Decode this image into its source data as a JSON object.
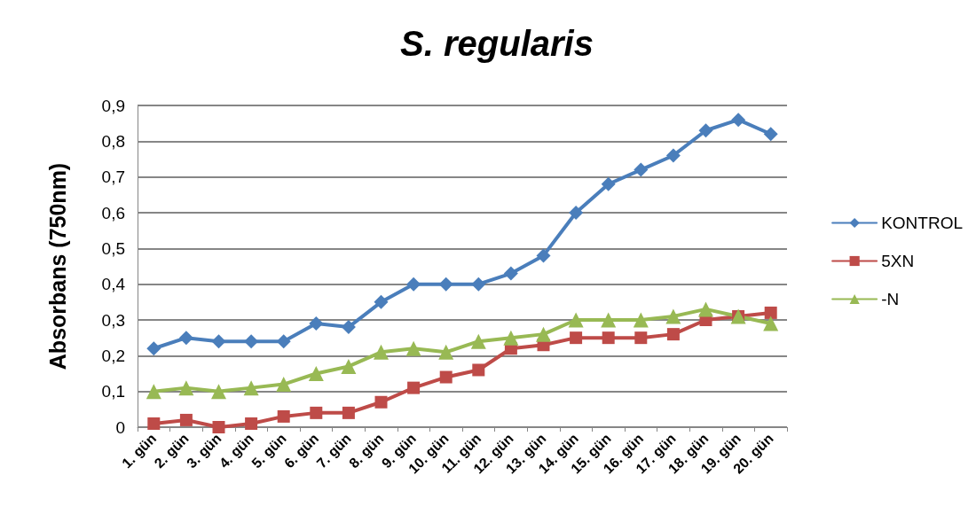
{
  "chart_data": {
    "type": "line",
    "title": "S. regularis",
    "ylabel": "Absorbans (750nm)",
    "categories": [
      "1. gün",
      "2. gün",
      "3. gün",
      "4. gün",
      "5. gün",
      "6. gün",
      "7. gün",
      "8. gün",
      "9. gün",
      "10. gün",
      "11. gün",
      "12. gün",
      "13. gün",
      "14. gün",
      "15. gün",
      "16. gün",
      "17. gün",
      "18. gün",
      "19. gün",
      "20. gün"
    ],
    "series": [
      {
        "name": "KONTROL",
        "color": "#4a7ebb",
        "marker": "diamond",
        "values": [
          0.22,
          0.25,
          0.24,
          0.24,
          0.24,
          0.29,
          0.28,
          0.35,
          0.4,
          0.4,
          0.4,
          0.43,
          0.48,
          0.6,
          0.68,
          0.72,
          0.76,
          0.83,
          0.86,
          0.82
        ]
      },
      {
        "name": "5XN",
        "color": "#be4b48",
        "marker": "square",
        "values": [
          0.01,
          0.02,
          0.0,
          0.01,
          0.03,
          0.04,
          0.04,
          0.07,
          0.11,
          0.14,
          0.16,
          0.22,
          0.23,
          0.25,
          0.25,
          0.25,
          0.26,
          0.3,
          0.31,
          0.32
        ]
      },
      {
        "name": "-N",
        "color": "#98b954",
        "marker": "triangle",
        "values": [
          0.1,
          0.11,
          0.1,
          0.11,
          0.12,
          0.15,
          0.17,
          0.21,
          0.22,
          0.21,
          0.24,
          0.25,
          0.26,
          0.3,
          0.3,
          0.3,
          0.31,
          0.33,
          0.31,
          0.29
        ]
      }
    ],
    "ylim": [
      0,
      0.9
    ],
    "yticks": [
      0,
      {
        "value": 0.1,
        "label": "0,1"
      },
      {
        "value": 0.2,
        "label": "0,2"
      },
      {
        "value": 0.3,
        "label": "0,3"
      },
      {
        "value": 0.4,
        "label": "0,4"
      },
      {
        "value": 0.5,
        "label": "0,5"
      },
      {
        "value": 0.6,
        "label": "0,6"
      },
      {
        "value": 0.7,
        "label": "0,7"
      },
      {
        "value": 0.8,
        "label": "0,8"
      },
      {
        "value": 0.9,
        "label": "0,9"
      }
    ],
    "grid": "y",
    "legend": "right",
    "line_style": "solid"
  }
}
